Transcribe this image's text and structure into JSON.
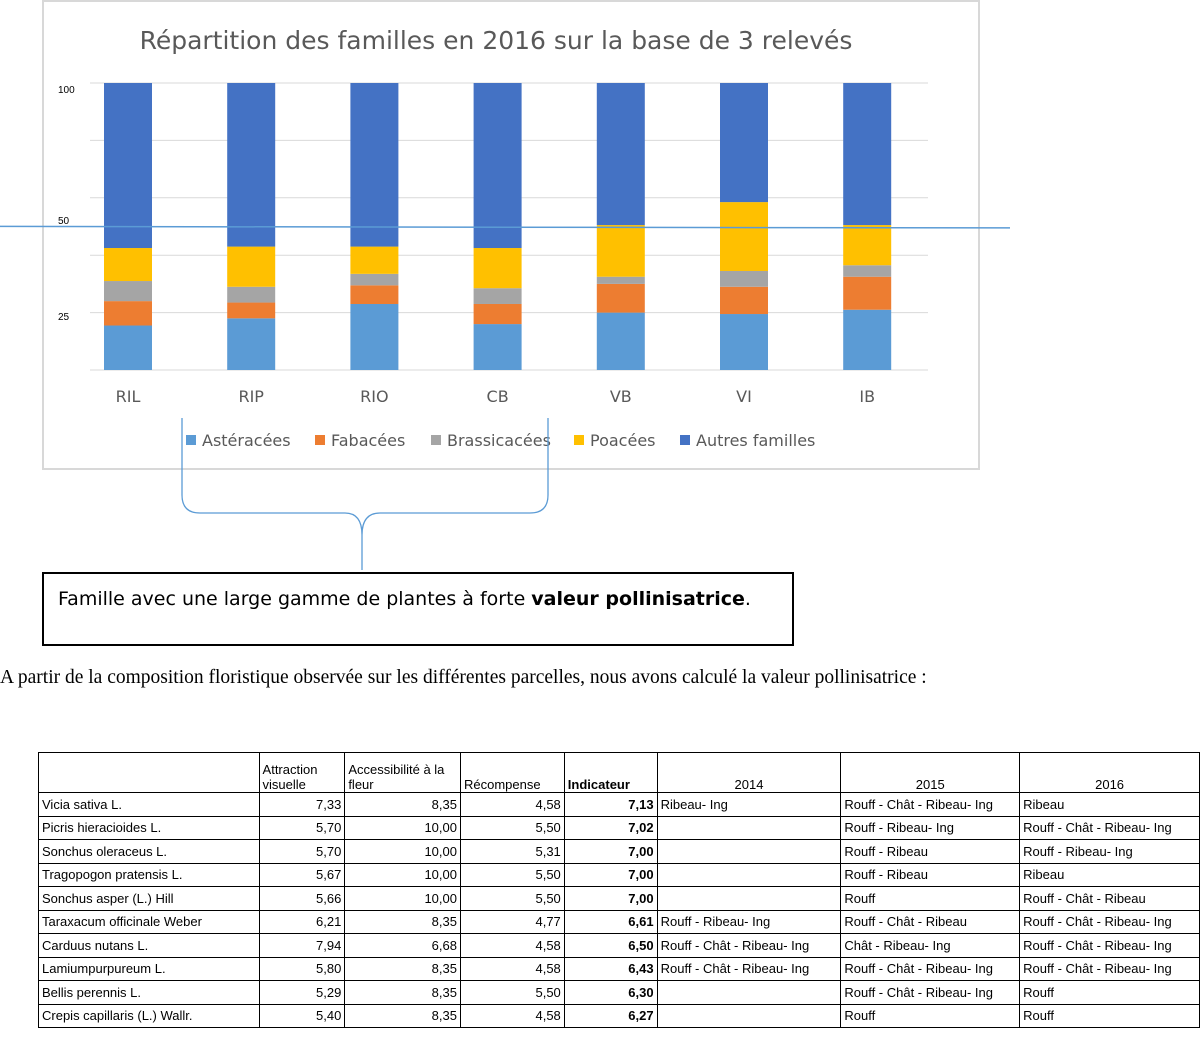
{
  "chart_data": {
    "type": "bar",
    "stacked": true,
    "title": "Répartition des familles en 2016 sur la base de 3 relevés",
    "y_tick_labels": [
      "100",
      "50",
      "25"
    ],
    "categories": [
      "RIL",
      "RIP",
      "RIO",
      "CB",
      "VB",
      "VI",
      "IB"
    ],
    "series": [
      {
        "name": "Astéracées",
        "color": "#5b9bd5",
        "values": [
          15.5,
          18.0,
          23.0,
          16.0,
          20.0,
          19.5,
          21.0
        ]
      },
      {
        "name": "Fabacées",
        "color": "#ed7d31",
        "values": [
          8.5,
          5.5,
          6.5,
          7.0,
          10.0,
          9.5,
          11.5
        ]
      },
      {
        "name": "Brassicacées",
        "color": "#a5a5a5",
        "values": [
          7.0,
          5.5,
          4.0,
          5.5,
          2.5,
          5.5,
          4.0
        ]
      },
      {
        "name": "Poacées",
        "color": "#ffc000",
        "values": [
          11.5,
          14.0,
          9.5,
          14.0,
          18.0,
          24.0,
          14.0
        ]
      },
      {
        "name": "Autres familles",
        "color": "#4472c4",
        "values": [
          57.5,
          57.0,
          57.0,
          57.5,
          49.5,
          41.5,
          49.5
        ]
      }
    ],
    "reference_line": 49.5,
    "legend_position": "bottom",
    "grid": true
  },
  "callout": {
    "text_before": "Famille avec une large gamme de plantes à forte ",
    "text_bold": "valeur pollinisatrice",
    "text_after": "."
  },
  "intro_text": "A partir de la composition floristique observée sur les différentes parcelles, nous avons calculé la valeur pollinisatrice :",
  "table": {
    "headers": {
      "attraction": "Attraction visuelle",
      "accessibilite": "Accessibilité à la fleur",
      "recompense": "Récompense",
      "indicateur": "Indicateur",
      "y2014": "2014",
      "y2015": "2015",
      "y2016": "2016"
    },
    "rows": [
      {
        "species": "Vicia sativa L.",
        "attraction": "7,33",
        "accessibilite": "8,35",
        "recompense": "4,58",
        "indicateur": "7,13",
        "y2014": "Ribeau- Ing",
        "y2015": "Rouff - Chât - Ribeau- Ing",
        "y2016": "Ribeau"
      },
      {
        "species": "Picris hieracioides L.",
        "attraction": "5,70",
        "accessibilite": "10,00",
        "recompense": "5,50",
        "indicateur": "7,02",
        "y2014": "",
        "y2015": "Rouff - Ribeau- Ing",
        "y2016": "Rouff - Chât - Ribeau- Ing"
      },
      {
        "species": "Sonchus oleraceus L.",
        "attraction": "5,70",
        "accessibilite": "10,00",
        "recompense": "5,31",
        "indicateur": "7,00",
        "y2014": "",
        "y2015": "Rouff - Ribeau",
        "y2016": "Rouff - Ribeau- Ing"
      },
      {
        "species": "Tragopogon pratensis L.",
        "attraction": "5,67",
        "accessibilite": "10,00",
        "recompense": "5,50",
        "indicateur": "7,00",
        "y2014": "",
        "y2015": "Rouff - Ribeau",
        "y2016": "Ribeau"
      },
      {
        "species": "Sonchus asper (L.) Hill",
        "attraction": "5,66",
        "accessibilite": "10,00",
        "recompense": "5,50",
        "indicateur": "7,00",
        "y2014": "",
        "y2015": "Rouff",
        "y2016": "Rouff - Chât - Ribeau"
      },
      {
        "species": "Taraxacum officinale  Weber",
        "attraction": "6,21",
        "accessibilite": "8,35",
        "recompense": "4,77",
        "indicateur": "6,61",
        "y2014": "Rouff - Ribeau- Ing",
        "y2015": "Rouff - Chât - Ribeau",
        "y2016": "Rouff - Chât - Ribeau- Ing"
      },
      {
        "species": "Carduus nutans L.",
        "attraction": "7,94",
        "accessibilite": "6,68",
        "recompense": "4,58",
        "indicateur": "6,50",
        "y2014": "Rouff - Chât - Ribeau- Ing",
        "y2015": "Chât - Ribeau- Ing",
        "y2016": "Rouff - Chât - Ribeau- Ing"
      },
      {
        "species": "Lamiumpurpureum L.",
        "attraction": "5,80",
        "accessibilite": "8,35",
        "recompense": "4,58",
        "indicateur": "6,43",
        "y2014": "Rouff - Chât - Ribeau- Ing",
        "y2015": "Rouff - Chât - Ribeau- Ing",
        "y2016": "Rouff - Chât - Ribeau- Ing"
      },
      {
        "species": "Bellis perennis L.",
        "attraction": "5,29",
        "accessibilite": "8,35",
        "recompense": "5,50",
        "indicateur": "6,30",
        "y2014": "",
        "y2015": "Rouff - Chât - Ribeau- Ing",
        "y2016": "Rouff"
      },
      {
        "species": "Crepis capillaris (L.) Wallr.",
        "attraction": "5,40",
        "accessibilite": "8,35",
        "recompense": "4,58",
        "indicateur": "6,27",
        "y2014": "",
        "y2015": "Rouff",
        "y2016": "Rouff"
      }
    ]
  }
}
